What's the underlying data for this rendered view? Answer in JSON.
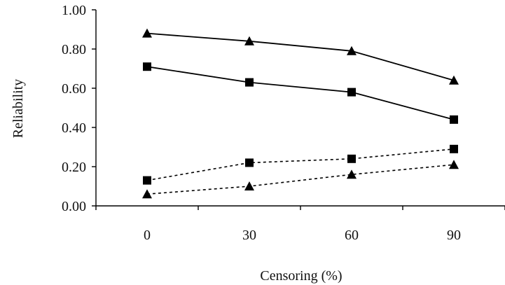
{
  "chart_data": {
    "type": "line",
    "title": "",
    "xlabel": "Censoring (%)",
    "ylabel": "Reliability",
    "categories": [
      "0",
      "30",
      "60",
      "90"
    ],
    "x": [
      0,
      30,
      60,
      90
    ],
    "ylim": [
      0,
      1
    ],
    "yticks": [
      "0.00",
      "0.20",
      "0.40",
      "0.60",
      "0.80",
      "1.00"
    ],
    "grid": false,
    "legend": "none",
    "series": [
      {
        "values": [
          0.88,
          0.84,
          0.79,
          0.64
        ],
        "marker": "triangle",
        "line": "solid",
        "color": "#000000"
      },
      {
        "values": [
          0.71,
          0.63,
          0.58,
          0.44
        ],
        "marker": "square",
        "line": "solid",
        "color": "#000000"
      },
      {
        "values": [
          0.13,
          0.22,
          0.24,
          0.29
        ],
        "marker": "square",
        "line": "dotted",
        "color": "#000000"
      },
      {
        "values": [
          0.06,
          0.1,
          0.16,
          0.21
        ],
        "marker": "triangle",
        "line": "dotted",
        "color": "#000000"
      }
    ]
  }
}
